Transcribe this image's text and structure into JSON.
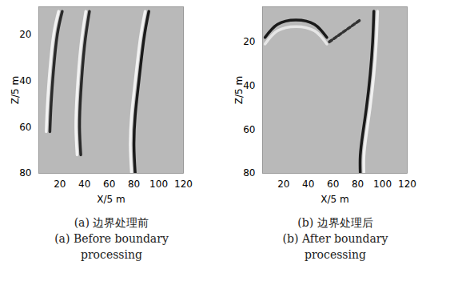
{
  "chart_data": [
    {
      "type": "line",
      "title": "(a) 边界处理前",
      "subtitle": "(a) Before boundary processing",
      "x_label": "X/5 m",
      "y_label": "Z/5 m",
      "xlim": [
        3,
        120
      ],
      "xticks": [
        20,
        40,
        60,
        80,
        100,
        120
      ],
      "ylim": [
        8,
        80
      ],
      "yticks": [
        20,
        40,
        60,
        80
      ],
      "series": [
        {
          "color": "#f2f2f2",
          "x": [
            19,
            15,
            12,
            10,
            9
          ],
          "values": [
            10,
            20,
            35,
            50,
            62
          ]
        },
        {
          "color": "#2a2a2a",
          "x": [
            22,
            18,
            15,
            13,
            12
          ],
          "values": [
            10,
            20,
            35,
            50,
            62
          ]
        },
        {
          "color": "#f2f2f2",
          "x": [
            41,
            37,
            34,
            33,
            34
          ],
          "values": [
            10,
            25,
            45,
            60,
            72
          ]
        },
        {
          "color": "#2a2a2a",
          "x": [
            44,
            40,
            37,
            36,
            37
          ],
          "values": [
            10,
            25,
            45,
            60,
            72
          ]
        },
        {
          "color": "#f2f2f2",
          "x": [
            89,
            85,
            81,
            78,
            77,
            78
          ],
          "values": [
            10,
            22,
            40,
            55,
            68,
            80
          ]
        },
        {
          "color": "#1a1a1a",
          "x": [
            92,
            88,
            84,
            81,
            80,
            81
          ],
          "values": [
            10,
            22,
            40,
            55,
            68,
            80
          ]
        }
      ]
    },
    {
      "type": "line",
      "title": "(b) 边界处理后",
      "subtitle": "(b) After boundary processing",
      "x_label": "X/5 m",
      "y_label": "Z/5 m",
      "xlim": [
        3,
        120
      ],
      "xticks": [
        20,
        40,
        60,
        80,
        100,
        120
      ],
      "ylim": [
        4,
        80
      ],
      "yticks": [
        20,
        40,
        60,
        80
      ],
      "series": [
        {
          "color": "#e6e6e6",
          "x": [
            5,
            15,
            30,
            45,
            55
          ],
          "values": [
            21,
            15,
            13,
            15,
            21
          ]
        },
        {
          "color": "#1a1a1a",
          "x": [
            5,
            15,
            30,
            45,
            55
          ],
          "values": [
            18,
            12,
            10,
            12,
            18
          ]
        },
        {
          "color": "#333333",
          "line_style": "dashed",
          "x": [
            57,
            62,
            67,
            72,
            77,
            82
          ],
          "values": [
            20,
            18,
            16,
            14,
            12,
            10
          ]
        },
        {
          "color": "#f0f0f0",
          "x": [
            96,
            95,
            93,
            90,
            87,
            85,
            85
          ],
          "values": [
            6,
            20,
            35,
            50,
            62,
            72,
            80
          ]
        },
        {
          "color": "#1a1a1a",
          "x": [
            93,
            92,
            90,
            87,
            84,
            82,
            82
          ],
          "values": [
            6,
            20,
            35,
            50,
            62,
            72,
            80
          ]
        }
      ]
    }
  ]
}
